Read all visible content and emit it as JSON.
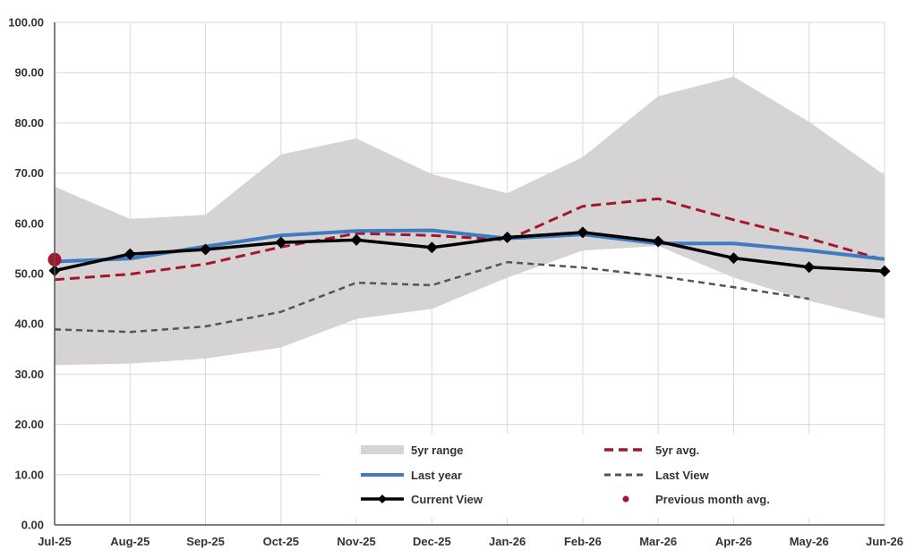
{
  "chart_data": {
    "type": "line",
    "title": "",
    "xlabel": "",
    "ylabel": "",
    "ylim": [
      0,
      100
    ],
    "yticks": [
      "0.00",
      "10.00",
      "20.00",
      "30.00",
      "40.00",
      "50.00",
      "60.00",
      "70.00",
      "80.00",
      "90.00",
      "100.00"
    ],
    "categories": [
      "Jul-25",
      "Aug-25",
      "Sep-25",
      "Oct-25",
      "Nov-25",
      "Dec-25",
      "Jan-26",
      "Feb-26",
      "Mar-26",
      "Apr-26",
      "May-26",
      "Jun-26"
    ],
    "range": {
      "name": "5yr range",
      "low": [
        31.8,
        32.1,
        33.1,
        35.3,
        41.0,
        43.0,
        49.2,
        54.6,
        55.5,
        49.2,
        44.6,
        41.0
      ],
      "high": [
        67.3,
        60.9,
        61.7,
        73.7,
        76.9,
        69.8,
        66.0,
        73.2,
        85.3,
        89.2,
        80.2,
        69.6
      ]
    },
    "series": [
      {
        "name": "5yr avg.",
        "values": [
          48.8,
          49.9,
          51.9,
          55.3,
          58.0,
          57.6,
          56.7,
          63.4,
          64.9,
          60.7,
          57.0,
          52.7
        ],
        "color": "#a4162b",
        "style": "dashed"
      },
      {
        "name": "Last year",
        "values": [
          52.4,
          53.0,
          55.4,
          57.6,
          58.5,
          58.6,
          57.0,
          57.8,
          56.0,
          56.0,
          54.6,
          52.9
        ],
        "color": "#3e7bbf",
        "style": "solid"
      },
      {
        "name": "Last View",
        "values": [
          38.9,
          38.4,
          39.5,
          42.4,
          48.2,
          47.7,
          52.3,
          51.2,
          49.5,
          47.3,
          45.0,
          null
        ],
        "color": "#555555",
        "style": "dashed"
      },
      {
        "name": "Current View",
        "values": [
          50.6,
          53.9,
          54.8,
          56.2,
          56.7,
          55.2,
          57.2,
          58.2,
          56.4,
          53.1,
          51.3,
          50.5
        ],
        "color": "#000000",
        "style": "solid-markers"
      }
    ],
    "previous_month_avg": {
      "name": "Previous month avg.",
      "category": "Jul-25",
      "value": 52.8,
      "color": "#a4162b"
    },
    "legend": [
      {
        "label": "5yr range",
        "kind": "band"
      },
      {
        "label": "5yr avg.",
        "kind": "dashed-red"
      },
      {
        "label": "Last year",
        "kind": "line-blue"
      },
      {
        "label": "Last View",
        "kind": "dashed-grey"
      },
      {
        "label": "Current View",
        "kind": "line-markers"
      },
      {
        "label": "Previous month avg.",
        "kind": "dot"
      }
    ],
    "legend_position": "bottom-center",
    "grid": true
  }
}
